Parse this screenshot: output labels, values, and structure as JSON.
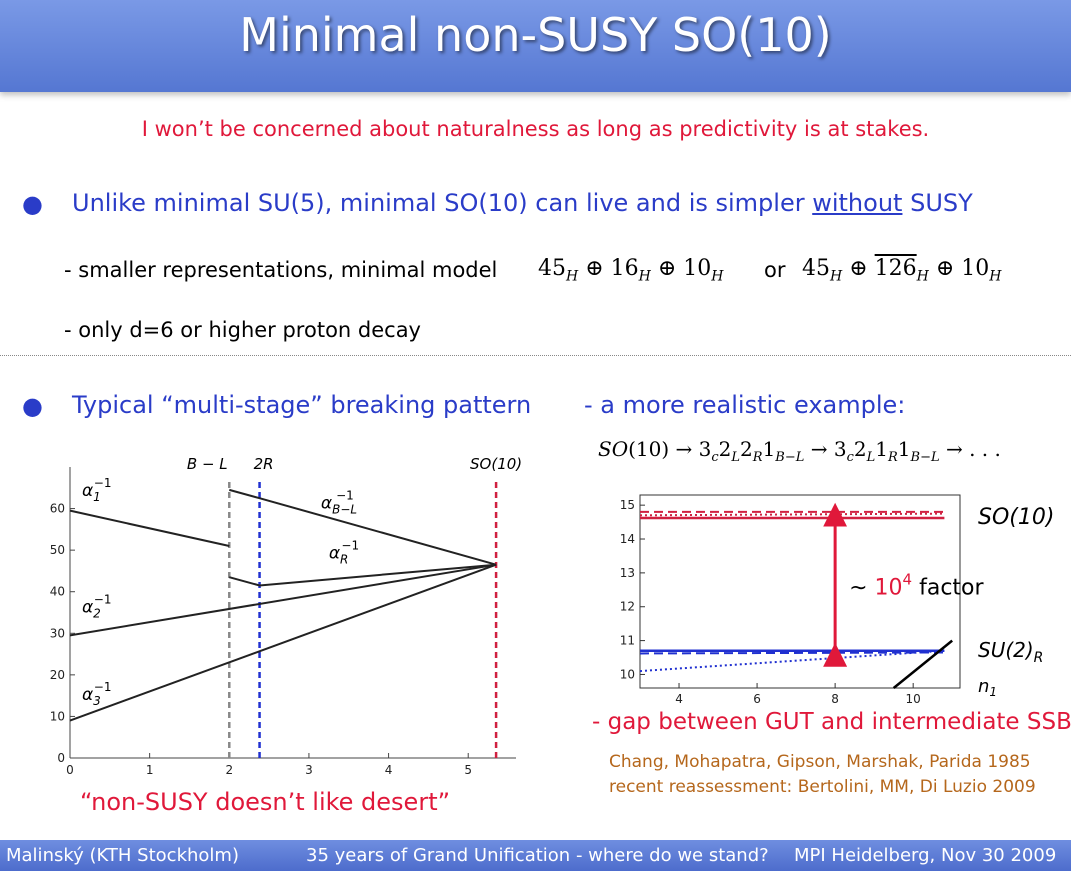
{
  "title": "Minimal non-SUSY SO(10)",
  "subtitle": "I won’t be concerned about naturalness as long as predictivity is at stakes.",
  "bullet1": {
    "pre": "Unlike minimal SU(5), minimal SO(10) can live and is simpler ",
    "underlined": "without",
    "post": " SUSY"
  },
  "sub1": {
    "text": "- smaller representations, minimal model",
    "model_a": "45_H ⊕ 16_H ⊕ 10_H",
    "or": "or",
    "model_b": "45_H ⊕ 126‾_H ⊕ 10_H"
  },
  "sub2": "- only d=6 or higher proton decay",
  "bullet2": "Typical “multi-stage” breaking pattern",
  "right_heading": "- a more realistic example:",
  "chain": "SO(10) → 3c2L2R1B−L → 3c2L1R1B−L → . . .",
  "left_caption": "“non-SUSY doesn’t like desert”",
  "gap_text": "- gap between GUT and intermediate SSB",
  "refs": [
    "Chang, Mohapatra, Gipson, Marshak, Parida 1985",
    "recent reassessment: Bertolini, MM, Di Luzio 2009"
  ],
  "footer": {
    "left": "Malinský (KTH Stockholm)",
    "center": "35 years of Grand Unification - where do we stand?",
    "right": "MPI Heidelberg, Nov 30 2009"
  },
  "chart_data": [
    {
      "type": "line",
      "xlim": [
        0,
        5.6
      ],
      "ylim": [
        0,
        70
      ],
      "x_ticks": [
        "0",
        "1",
        "2",
        "3",
        "4",
        "5"
      ],
      "y_ticks": [
        "0",
        "10",
        "20",
        "30",
        "40",
        "50",
        "60"
      ],
      "vertical_markers": [
        {
          "label": "B − L",
          "x": 2.0,
          "color": "#888888"
        },
        {
          "label": "2R",
          "x": 2.38,
          "color": "#2030d0"
        },
        {
          "label": "SO(10)",
          "x": 5.35,
          "color": "#d02040"
        }
      ],
      "series": [
        {
          "name": "α1^-1",
          "points": [
            [
              0,
              59.5
            ],
            [
              2.0,
              51.0
            ]
          ]
        },
        {
          "name": "α2^-1",
          "points": [
            [
              0,
              29.5
            ],
            [
              5.35,
              46.5
            ]
          ]
        },
        {
          "name": "α3^-1",
          "points": [
            [
              0,
              9.0
            ],
            [
              5.35,
              46.5
            ]
          ]
        },
        {
          "name": "αB−L^-1",
          "points": [
            [
              2.0,
              64.5
            ],
            [
              2.38,
              62.5
            ],
            [
              5.35,
              46.5
            ]
          ]
        },
        {
          "name": "αR^-1",
          "points": [
            [
              2.0,
              43.5
            ],
            [
              2.38,
              41.5
            ],
            [
              5.35,
              46.5
            ]
          ]
        }
      ]
    },
    {
      "type": "line",
      "xlim": [
        3,
        11.2
      ],
      "ylim": [
        9.6,
        15.3
      ],
      "x_ticks": [
        "4",
        "6",
        "8",
        "10"
      ],
      "y_ticks": [
        "10",
        "11",
        "12",
        "13",
        "14",
        "15"
      ],
      "x_label": "n1",
      "labels": {
        "top": "SO(10)",
        "bottom": "SU(2)R",
        "arrow": "~ 10^4 factor"
      },
      "arrow": {
        "from": 10.7,
        "to": 14.6,
        "factor_text": "10^4"
      },
      "series": [
        {
          "name": "SO(10) solid",
          "color": "#d02040",
          "style": "solid",
          "points": [
            [
              3,
              14.62
            ],
            [
              10.8,
              14.62
            ]
          ]
        },
        {
          "name": "SO(10) dashed",
          "color": "#d02040",
          "style": "dashed",
          "points": [
            [
              3,
              14.8
            ],
            [
              10.8,
              14.8
            ]
          ]
        },
        {
          "name": "SO(10) dotted",
          "color": "#d02040",
          "style": "dotted",
          "points": [
            [
              3,
              14.7
            ],
            [
              10.8,
              14.75
            ]
          ]
        },
        {
          "name": "SU(2)R solid",
          "color": "#2030d0",
          "style": "solid",
          "points": [
            [
              3,
              10.7
            ],
            [
              10.8,
              10.7
            ]
          ]
        },
        {
          "name": "SU(2)R dashed",
          "color": "#2030d0",
          "style": "dashed",
          "points": [
            [
              3,
              10.62
            ],
            [
              10.8,
              10.65
            ]
          ]
        },
        {
          "name": "SU(2)R dotted",
          "color": "#2030d0",
          "style": "dotted",
          "points": [
            [
              3,
              10.1
            ],
            [
              10.8,
              10.7
            ]
          ]
        },
        {
          "name": "black",
          "color": "#000000",
          "style": "solid",
          "points": [
            [
              9.5,
              9.6
            ],
            [
              11.0,
              11.0
            ]
          ]
        }
      ]
    }
  ]
}
